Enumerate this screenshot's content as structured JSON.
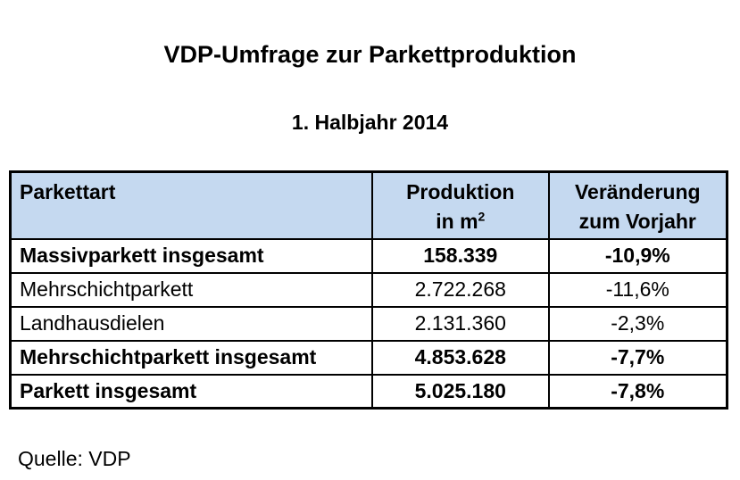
{
  "title": "VDP-Umfrage zur Parkettproduktion",
  "subtitle": "1. Halbjahr 2014",
  "source": "Quelle: VDP",
  "colors": {
    "header_bg": "#C5D9F0",
    "border": "#000000",
    "text": "#000000",
    "page_bg": "#FFFFFF"
  },
  "table": {
    "columns": [
      {
        "label": "Parkettart"
      },
      {
        "line1": "Produktion",
        "line2": "in m",
        "sup": "2"
      },
      {
        "line1": "Veränderung",
        "line2": "zum Vorjahr"
      }
    ],
    "rows": [
      {
        "name": "Massivparkett insgesamt",
        "production_m2": "158.339",
        "change_vs_prev_year": "-10,9%",
        "bold": true
      },
      {
        "name": "Mehrschichtparkett",
        "production_m2": "2.722.268",
        "change_vs_prev_year": "-11,6%",
        "bold": false
      },
      {
        "name": "Landhausdielen",
        "production_m2": "2.131.360",
        "change_vs_prev_year": "-2,3%",
        "bold": false
      },
      {
        "name": "Mehrschichtparkett insgesamt",
        "production_m2": "4.853.628",
        "change_vs_prev_year": "-7,7%",
        "bold": true
      },
      {
        "name": "Parkett insgesamt",
        "production_m2": "5.025.180",
        "change_vs_prev_year": "-7,8%",
        "bold": true
      }
    ]
  }
}
